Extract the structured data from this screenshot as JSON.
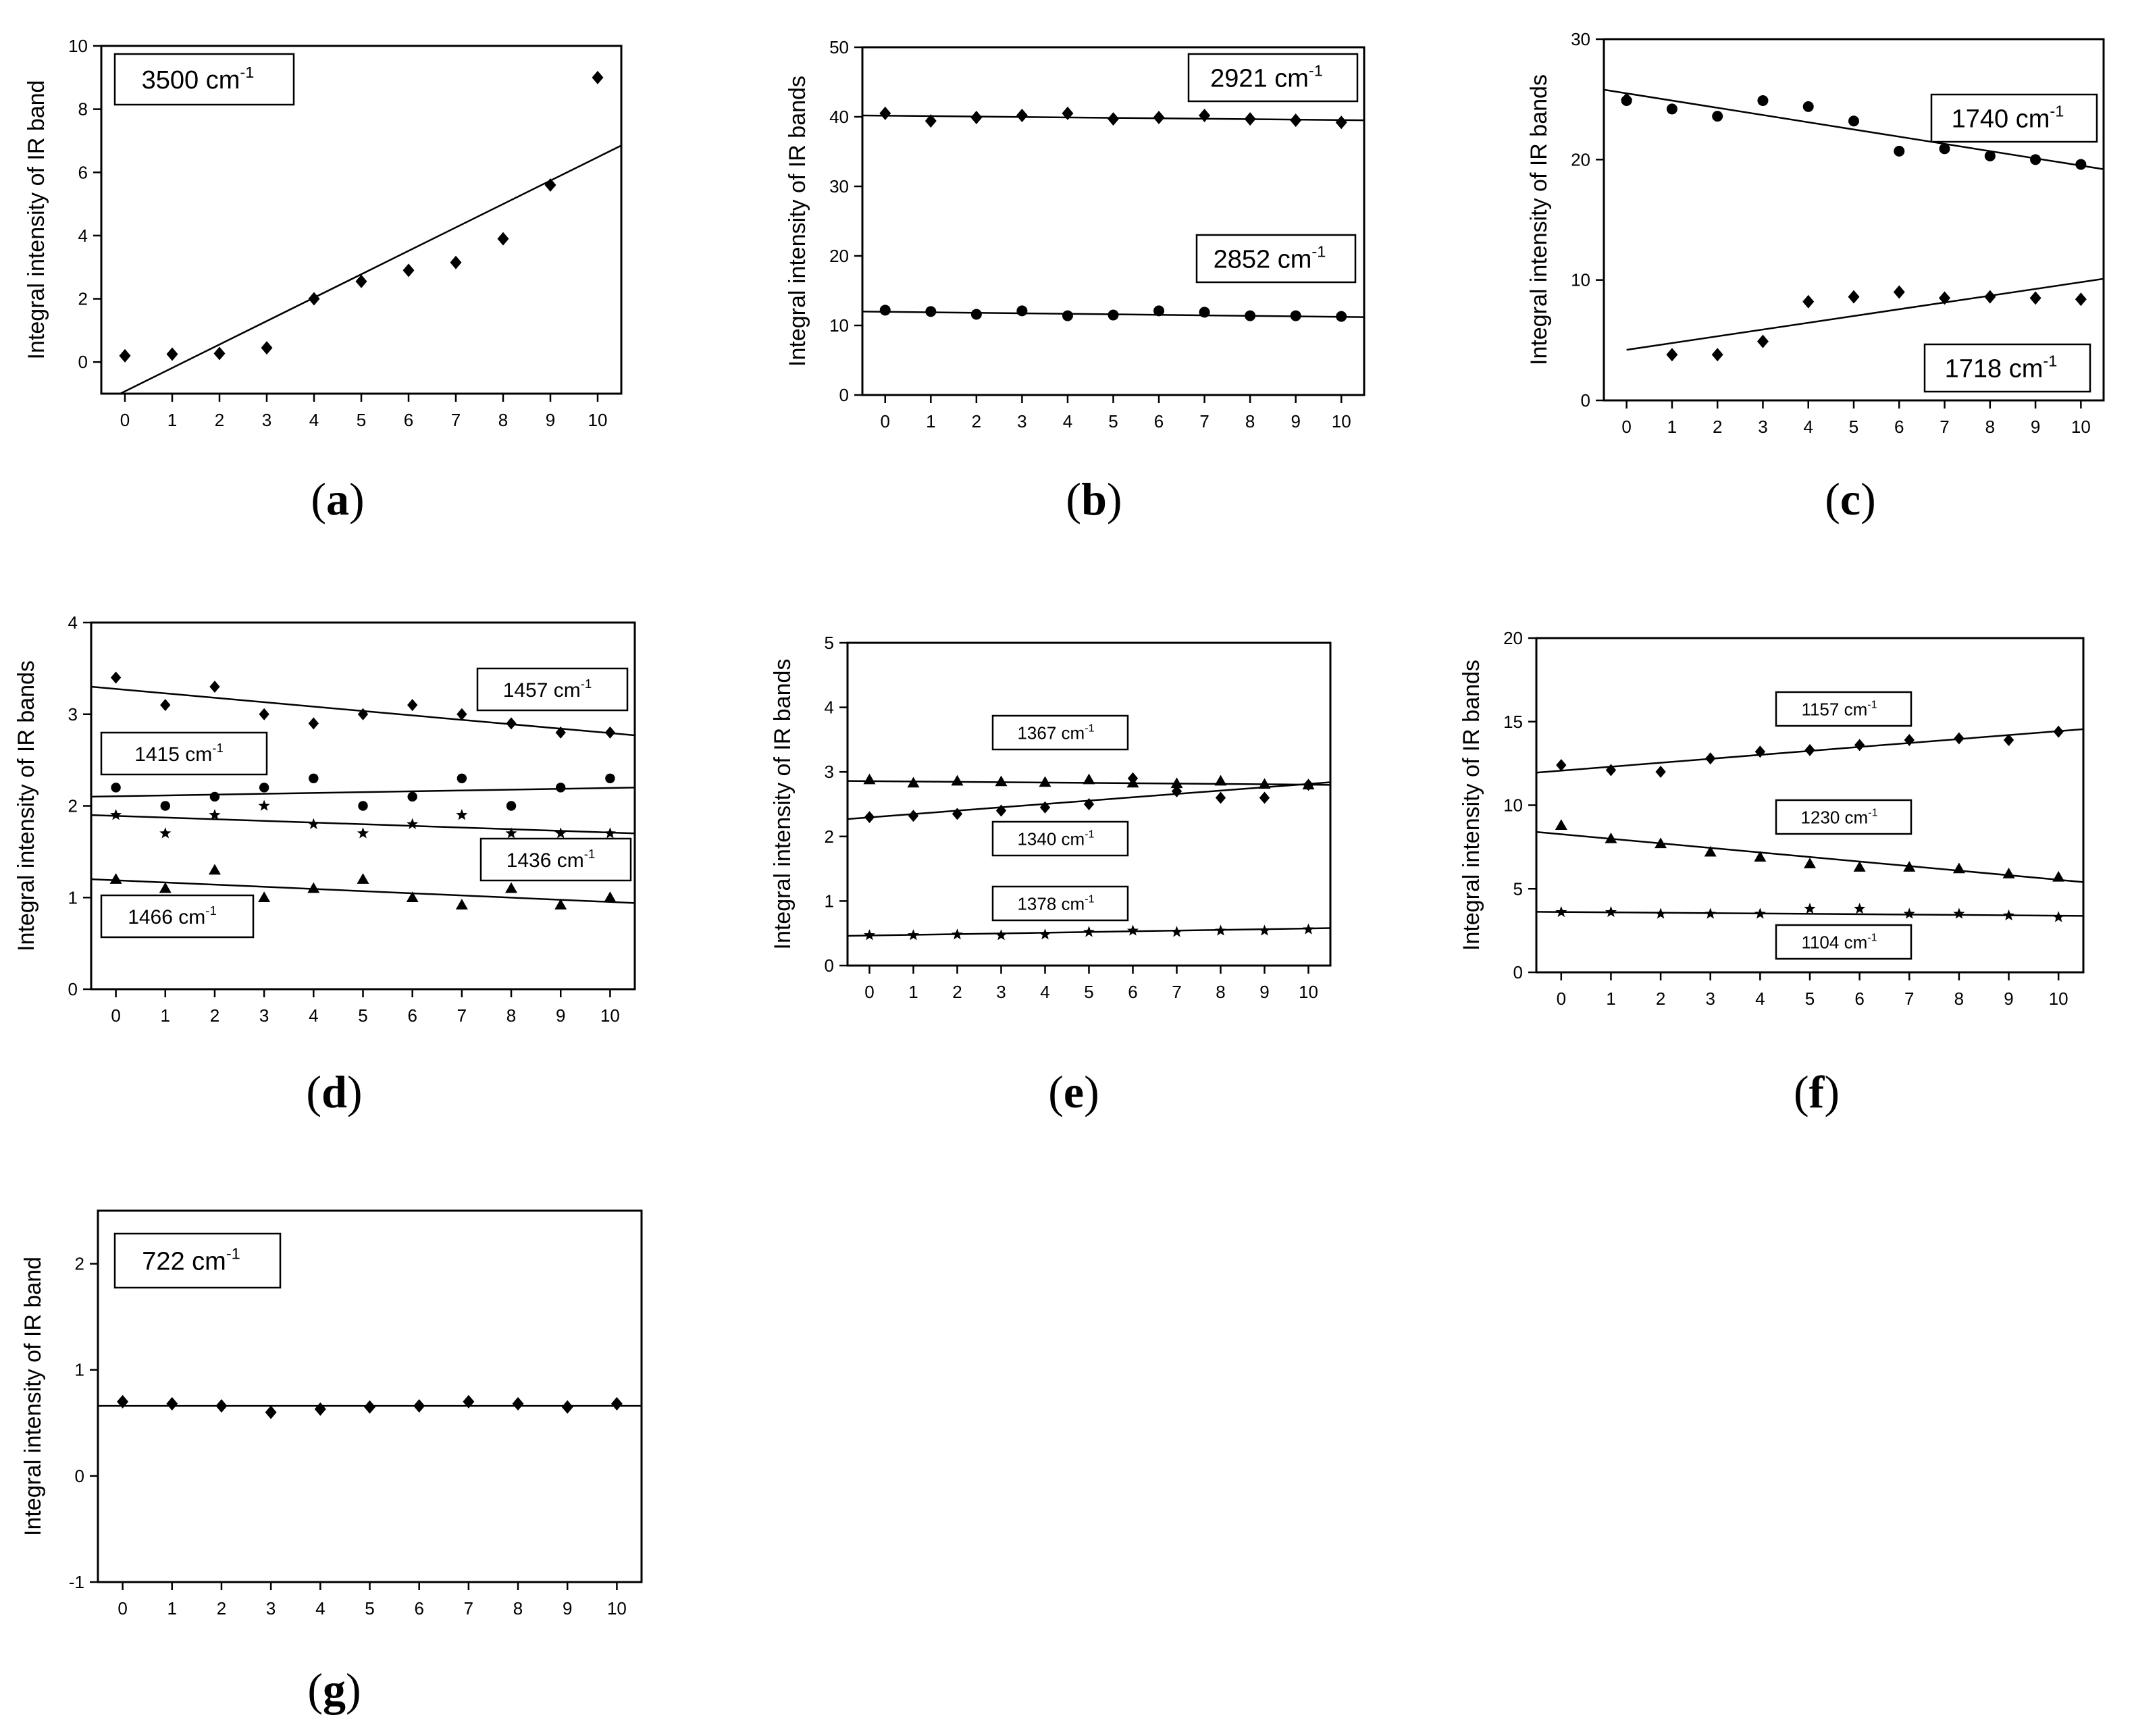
{
  "chart_data": [
    {
      "type": "scatter",
      "panel": "(a)",
      "xlabel": "",
      "ylabel": "Integral intensity of IR band",
      "xlim": [
        -0.5,
        10.5
      ],
      "ylim": [
        -1,
        10
      ],
      "xticks": [
        0,
        1,
        2,
        3,
        4,
        5,
        6,
        7,
        8,
        9,
        10
      ],
      "yticks": [
        0,
        2,
        4,
        6,
        8,
        10
      ],
      "series": [
        {
          "label": "3500 cm",
          "marker": "diamond",
          "x": [
            0,
            1,
            2,
            3,
            4,
            5,
            6,
            7,
            8,
            9,
            10
          ],
          "y": [
            0.2,
            0.25,
            0.27,
            0.45,
            2.0,
            2.55,
            2.9,
            3.15,
            3.9,
            5.6,
            9.0
          ],
          "fit": [
            [
              -0.1,
              -1.0
            ],
            [
              10.5,
              6.85
            ]
          ]
        }
      ]
    },
    {
      "type": "scatter",
      "panel": "(b)",
      "xlabel": "",
      "ylabel": "Integral intensity of IR bands",
      "xlim": [
        -0.5,
        10.5
      ],
      "ylim": [
        0,
        50
      ],
      "xticks": [
        0,
        1,
        2,
        3,
        4,
        5,
        6,
        7,
        8,
        9,
        10
      ],
      "yticks": [
        0,
        10,
        20,
        30,
        40,
        50
      ],
      "series": [
        {
          "label": "2921 cm",
          "marker": "diamond",
          "x": [
            0,
            1,
            2,
            3,
            4,
            5,
            6,
            7,
            8,
            9,
            10
          ],
          "y": [
            40.5,
            39.4,
            39.9,
            40.2,
            40.5,
            39.7,
            39.9,
            40.2,
            39.7,
            39.5,
            39.2
          ],
          "fit": [
            [
              -0.5,
              40.2
            ],
            [
              10.5,
              39.5
            ]
          ]
        },
        {
          "label": "2852 cm",
          "marker": "circle",
          "x": [
            0,
            1,
            2,
            3,
            4,
            5,
            6,
            7,
            8,
            9,
            10
          ],
          "y": [
            12.2,
            12.0,
            11.6,
            12.1,
            11.4,
            11.5,
            12.1,
            11.9,
            11.4,
            11.4,
            11.3
          ],
          "fit": [
            [
              -0.5,
              12.0
            ],
            [
              10.5,
              11.2
            ]
          ]
        }
      ]
    },
    {
      "type": "scatter",
      "panel": "(c)",
      "xlabel": "",
      "ylabel": "Integral intensity of IR bands",
      "xlim": [
        -0.5,
        10.5
      ],
      "ylim": [
        0,
        30
      ],
      "xticks": [
        0,
        1,
        2,
        3,
        4,
        5,
        6,
        7,
        8,
        9,
        10
      ],
      "yticks": [
        0,
        10,
        20,
        30
      ],
      "series": [
        {
          "label": "1740 cm",
          "marker": "circle",
          "x": [
            0,
            1,
            2,
            3,
            4,
            5,
            6,
            7,
            8,
            9,
            10
          ],
          "y": [
            24.9,
            24.2,
            23.6,
            24.9,
            24.4,
            23.2,
            20.7,
            20.9,
            20.3,
            20.0,
            19.6
          ],
          "fit": [
            [
              -0.5,
              25.8
            ],
            [
              10.5,
              19.2
            ]
          ]
        },
        {
          "label": "1718 cm",
          "marker": "diamond",
          "x": [
            0,
            1,
            2,
            3,
            4,
            5,
            6,
            7,
            8,
            9,
            10
          ],
          "y": [
            25.0,
            3.8,
            3.8,
            4.9,
            8.2,
            8.6,
            9.0,
            8.5,
            8.6,
            8.5,
            8.4
          ],
          "fit": [
            [
              0,
              4.2
            ],
            [
              10.5,
              10.1
            ]
          ]
        }
      ]
    },
    {
      "type": "scatter",
      "panel": "(d)",
      "xlabel": "",
      "ylabel": "Integral intensity of IR bands",
      "xlim": [
        -0.5,
        10.5
      ],
      "ylim": [
        0,
        4
      ],
      "xticks": [
        0,
        1,
        2,
        3,
        4,
        5,
        6,
        7,
        8,
        9,
        10
      ],
      "yticks": [
        0,
        1,
        2,
        3,
        4
      ],
      "series": [
        {
          "label": "1457 cm",
          "marker": "diamond",
          "x": [
            0,
            1,
            2,
            3,
            4,
            5,
            6,
            7,
            8,
            9,
            10
          ],
          "y": [
            3.4,
            3.1,
            3.3,
            3.0,
            2.9,
            3.0,
            3.1,
            3.0,
            2.9,
            2.8,
            2.8
          ],
          "fit": [
            [
              -0.5,
              3.3
            ],
            [
              10.5,
              2.77
            ]
          ]
        },
        {
          "label": "1415 cm",
          "marker": "circle",
          "x": [
            0,
            1,
            2,
            3,
            4,
            5,
            6,
            7,
            8,
            9,
            10
          ],
          "y": [
            2.2,
            2.0,
            2.1,
            2.2,
            2.3,
            2.0,
            2.1,
            2.3,
            2.0,
            2.2,
            2.3
          ],
          "fit": [
            [
              -0.5,
              2.1
            ],
            [
              10.5,
              2.2
            ]
          ]
        },
        {
          "label": "1436 cm",
          "marker": "star",
          "x": [
            0,
            1,
            2,
            3,
            4,
            5,
            6,
            7,
            8,
            9,
            10
          ],
          "y": [
            1.9,
            1.7,
            1.9,
            2.0,
            1.8,
            1.7,
            1.8,
            1.9,
            1.7,
            1.7,
            1.7
          ],
          "fit": [
            [
              -0.5,
              1.9
            ],
            [
              10.5,
              1.7
            ]
          ]
        },
        {
          "label": "1466 cm",
          "marker": "triangle",
          "x": [
            0,
            1,
            2,
            3,
            4,
            5,
            6,
            7,
            8,
            9,
            10
          ],
          "y": [
            1.2,
            1.1,
            1.3,
            1.0,
            1.1,
            1.2,
            1.0,
            0.92,
            1.1,
            0.92,
            1.0
          ],
          "fit": [
            [
              -0.5,
              1.2
            ],
            [
              10.5,
              0.94
            ]
          ]
        }
      ]
    },
    {
      "type": "scatter",
      "panel": "(e)",
      "xlabel": "",
      "ylabel": "Integral intensity of IR bands",
      "xlim": [
        -0.5,
        10.5
      ],
      "ylim": [
        0,
        5
      ],
      "xticks": [
        0,
        1,
        2,
        3,
        4,
        5,
        6,
        7,
        8,
        9,
        10
      ],
      "yticks": [
        0,
        1,
        2,
        3,
        4,
        5
      ],
      "series": [
        {
          "label": "1367 cm",
          "marker": "triangle",
          "x": [
            0,
            1,
            2,
            3,
            4,
            5,
            6,
            7,
            8,
            9,
            10
          ],
          "y": [
            2.88,
            2.83,
            2.86,
            2.85,
            2.84,
            2.88,
            2.83,
            2.82,
            2.86,
            2.81,
            2.8
          ],
          "fit": [
            [
              -0.5,
              2.86
            ],
            [
              10.5,
              2.8
            ]
          ]
        },
        {
          "label": "1340 cm",
          "marker": "diamond",
          "x": [
            0,
            1,
            2,
            3,
            4,
            5,
            6,
            7,
            8,
            9,
            10
          ],
          "y": [
            2.3,
            2.32,
            2.35,
            2.4,
            2.45,
            2.5,
            2.9,
            2.7,
            2.6,
            2.6,
            2.8
          ],
          "fit": [
            [
              -0.5,
              2.27
            ],
            [
              10.5,
              2.84
            ]
          ]
        },
        {
          "label": "1378 cm",
          "marker": "star",
          "x": [
            0,
            1,
            2,
            3,
            4,
            5,
            6,
            7,
            8,
            9,
            10
          ],
          "y": [
            0.47,
            0.47,
            0.48,
            0.47,
            0.48,
            0.52,
            0.54,
            0.52,
            0.54,
            0.54,
            0.56
          ],
          "fit": [
            [
              -0.5,
              0.46
            ],
            [
              10.5,
              0.58
            ]
          ]
        }
      ]
    },
    {
      "type": "scatter",
      "panel": "(f)",
      "xlabel": "",
      "ylabel": "Integral intensity of IR bands",
      "xlim": [
        -0.5,
        10.5
      ],
      "ylim": [
        0,
        20
      ],
      "xticks": [
        0,
        1,
        2,
        3,
        4,
        5,
        6,
        7,
        8,
        9,
        10
      ],
      "yticks": [
        0,
        5,
        10,
        15,
        20
      ],
      "series": [
        {
          "label": "1157 cm",
          "marker": "diamond",
          "x": [
            0,
            1,
            2,
            3,
            4,
            5,
            6,
            7,
            8,
            9,
            10
          ],
          "y": [
            12.4,
            12.1,
            12.0,
            12.8,
            13.2,
            13.3,
            13.6,
            13.9,
            14.0,
            13.9,
            14.4
          ],
          "fit": [
            [
              -0.5,
              11.95
            ],
            [
              10.5,
              14.55
            ]
          ]
        },
        {
          "label": "1230 cm",
          "marker": "triangle",
          "x": [
            0,
            1,
            2,
            3,
            4,
            5,
            6,
            7,
            8,
            9,
            10
          ],
          "y": [
            8.8,
            8.0,
            7.7,
            7.2,
            6.9,
            6.5,
            6.3,
            6.3,
            6.2,
            5.9,
            5.7
          ],
          "fit": [
            [
              -0.5,
              8.4
            ],
            [
              10.5,
              5.4
            ]
          ]
        },
        {
          "label": "1104 cm",
          "marker": "star",
          "x": [
            0,
            1,
            2,
            3,
            4,
            5,
            6,
            7,
            8,
            9,
            10
          ],
          "y": [
            3.6,
            3.6,
            3.5,
            3.5,
            3.5,
            3.8,
            3.8,
            3.5,
            3.5,
            3.4,
            3.3
          ],
          "fit": [
            [
              -0.5,
              3.62
            ],
            [
              10.5,
              3.38
            ]
          ]
        }
      ]
    },
    {
      "type": "scatter",
      "panel": "(g)",
      "xlabel": "",
      "ylabel": "Integral intensity of IR band",
      "xlim": [
        -0.5,
        10.5
      ],
      "ylim": [
        -1,
        2.5
      ],
      "xticks": [
        0,
        1,
        2,
        3,
        4,
        5,
        6,
        7,
        8,
        9,
        10
      ],
      "yticks": [
        -1,
        0,
        1,
        2
      ],
      "series": [
        {
          "label": "722 cm",
          "marker": "diamond",
          "x": [
            0,
            1,
            2,
            3,
            4,
            5,
            6,
            7,
            8,
            9,
            10
          ],
          "y": [
            0.7,
            0.68,
            0.66,
            0.6,
            0.63,
            0.65,
            0.66,
            0.7,
            0.68,
            0.65,
            0.68
          ],
          "fit": [
            [
              -0.5,
              0.66
            ],
            [
              10.5,
              0.66
            ]
          ]
        }
      ]
    }
  ],
  "unit_superscript": "-1"
}
